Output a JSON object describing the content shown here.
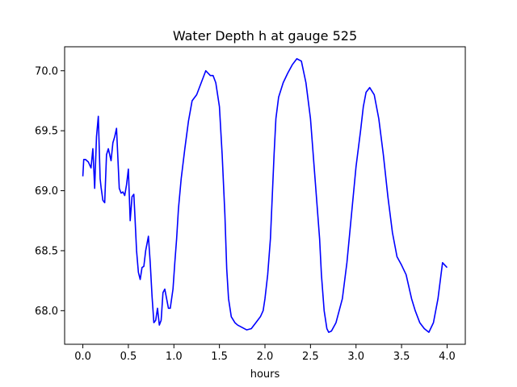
{
  "chart_data": {
    "type": "line",
    "title": "Water Depth h at gauge 525",
    "xlabel": "hours",
    "ylabel": "",
    "xlim": [
      -0.2,
      4.2
    ],
    "ylim": [
      67.72,
      70.2
    ],
    "xticks": [
      0.0,
      0.5,
      1.0,
      1.5,
      2.0,
      2.5,
      3.0,
      3.5,
      4.0
    ],
    "xtick_labels": [
      "0.0",
      "0.5",
      "1.0",
      "1.5",
      "2.0",
      "2.5",
      "3.0",
      "3.5",
      "4.0"
    ],
    "yticks": [
      68.0,
      68.5,
      69.0,
      69.5,
      70.0
    ],
    "ytick_labels": [
      "68.0",
      "68.5",
      "69.0",
      "69.5",
      "70.0"
    ],
    "grid": false,
    "series": [
      {
        "color": "#0000ff",
        "x": [
          0.0,
          0.01,
          0.03,
          0.06,
          0.09,
          0.11,
          0.13,
          0.15,
          0.17,
          0.19,
          0.2,
          0.22,
          0.24,
          0.26,
          0.28,
          0.31,
          0.33,
          0.35,
          0.37,
          0.4,
          0.42,
          0.44,
          0.46,
          0.48,
          0.5,
          0.52,
          0.54,
          0.56,
          0.57,
          0.59,
          0.61,
          0.63,
          0.65,
          0.67,
          0.69,
          0.72,
          0.74,
          0.76,
          0.78,
          0.8,
          0.82,
          0.84,
          0.86,
          0.88,
          0.9,
          0.92,
          0.94,
          0.96,
          0.99,
          1.01,
          1.03,
          1.05,
          1.08,
          1.12,
          1.16,
          1.2,
          1.25,
          1.3,
          1.35,
          1.4,
          1.43,
          1.46,
          1.5,
          1.53,
          1.56,
          1.58,
          1.6,
          1.63,
          1.67,
          1.7,
          1.75,
          1.8,
          1.85,
          1.9,
          1.95,
          1.98,
          2.0,
          2.03,
          2.06,
          2.08,
          2.1,
          2.12,
          2.15,
          2.2,
          2.25,
          2.3,
          2.35,
          2.4,
          2.45,
          2.5,
          2.55,
          2.6,
          2.62,
          2.65,
          2.68,
          2.7,
          2.73,
          2.78,
          2.85,
          2.9,
          2.95,
          3.0,
          3.05,
          3.08,
          3.11,
          3.15,
          3.2,
          3.25,
          3.3,
          3.35,
          3.4,
          3.45,
          3.5,
          3.55,
          3.58,
          3.61,
          3.65,
          3.7,
          3.75,
          3.8,
          3.85,
          3.9,
          3.95,
          4.0
        ],
        "y": [
          69.12,
          69.26,
          69.26,
          69.24,
          69.19,
          69.35,
          69.02,
          69.45,
          69.62,
          69.1,
          69.03,
          68.92,
          68.9,
          69.3,
          69.35,
          69.25,
          69.4,
          69.45,
          69.52,
          69.02,
          68.98,
          68.99,
          68.96,
          69.05,
          69.18,
          68.75,
          68.95,
          68.97,
          68.82,
          68.5,
          68.32,
          68.26,
          68.36,
          68.37,
          68.5,
          68.62,
          68.4,
          68.12,
          67.9,
          67.92,
          68.02,
          67.88,
          67.92,
          68.15,
          68.18,
          68.1,
          68.02,
          68.02,
          68.18,
          68.4,
          68.6,
          68.85,
          69.1,
          69.35,
          69.58,
          69.75,
          69.8,
          69.9,
          70.0,
          69.96,
          69.96,
          69.9,
          69.7,
          69.3,
          68.8,
          68.35,
          68.1,
          67.95,
          67.9,
          67.88,
          67.86,
          67.84,
          67.85,
          67.9,
          67.95,
          68.0,
          68.1,
          68.3,
          68.6,
          68.95,
          69.3,
          69.6,
          69.78,
          69.9,
          69.98,
          70.05,
          70.1,
          70.08,
          69.9,
          69.6,
          69.1,
          68.6,
          68.3,
          68.0,
          67.85,
          67.82,
          67.83,
          67.9,
          68.1,
          68.4,
          68.8,
          69.2,
          69.5,
          69.7,
          69.82,
          69.86,
          69.8,
          69.6,
          69.3,
          68.95,
          68.65,
          68.45,
          68.38,
          68.3,
          68.2,
          68.1,
          68.0,
          67.9,
          67.85,
          67.82,
          67.9,
          68.1,
          68.4,
          68.36
        ]
      }
    ]
  }
}
